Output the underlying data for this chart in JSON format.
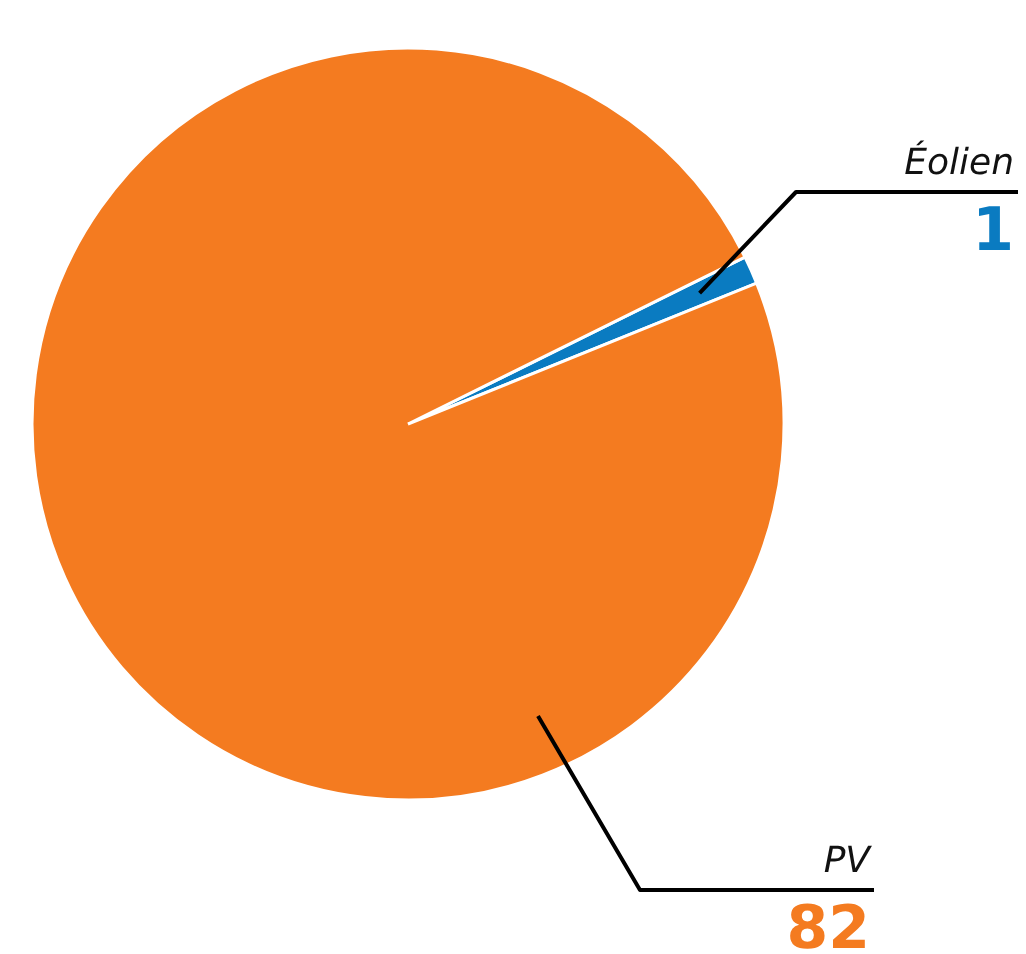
{
  "chart_data": {
    "type": "pie",
    "categories": [
      "Éolien",
      "PV"
    ],
    "values": [
      1,
      82
    ],
    "colors": [
      "#0a7bc1",
      "#f47b20"
    ],
    "data_labels": true
  }
}
